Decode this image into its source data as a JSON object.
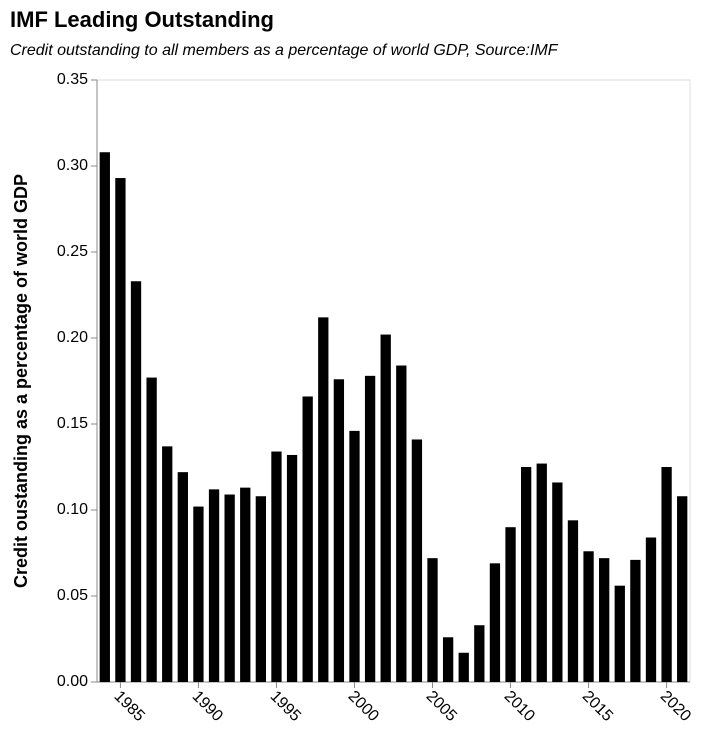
{
  "chart_data": {
    "type": "bar",
    "title": "IMF Leading Outstanding",
    "subtitle": "Credit outstanding to all members as a percentage of world GDP, Source:IMF",
    "y_label": "Credit oustanding as a percentage of world GDP",
    "color": "#000000",
    "x": [
      1984,
      1985,
      1986,
      1987,
      1988,
      1989,
      1990,
      1991,
      1992,
      1993,
      1994,
      1995,
      1996,
      1997,
      1998,
      1999,
      2000,
      2001,
      2002,
      2003,
      2004,
      2005,
      2006,
      2007,
      2008,
      2009,
      2010,
      2011,
      2012,
      2013,
      2014,
      2015,
      2016,
      2017,
      2018,
      2019,
      2020,
      2021
    ],
    "values": [
      0.308,
      0.293,
      0.233,
      0.177,
      0.137,
      0.122,
      0.102,
      0.112,
      0.109,
      0.113,
      0.108,
      0.134,
      0.132,
      0.166,
      0.212,
      0.176,
      0.146,
      0.178,
      0.202,
      0.184,
      0.141,
      0.072,
      0.026,
      0.017,
      0.033,
      0.069,
      0.09,
      0.125,
      0.127,
      0.116,
      0.094,
      0.076,
      0.072,
      0.056,
      0.071,
      0.084,
      0.125,
      0.108
    ],
    "xlim": [
      1983.5,
      2021.5
    ],
    "xticks": [
      1985,
      1990,
      1995,
      2000,
      2005,
      2010,
      2015,
      2020
    ],
    "ylim": [
      0,
      0.35
    ],
    "yticks": [
      {
        "value": 0,
        "label": "0.00"
      },
      {
        "value": 0.05,
        "label": "0.05"
      },
      {
        "value": 0.1,
        "label": "0.10"
      },
      {
        "value": 0.15,
        "label": "0.15"
      },
      {
        "value": 0.2,
        "label": "0.20"
      },
      {
        "value": 0.25,
        "label": "0.25"
      },
      {
        "value": 0.3,
        "label": "0.30"
      },
      {
        "value": 0.35,
        "label": "0.35"
      }
    ],
    "grid": false
  }
}
